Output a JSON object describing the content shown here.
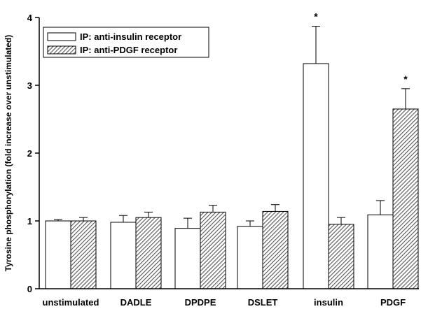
{
  "chart_data": {
    "type": "bar",
    "categories": [
      "unstimulated",
      "DADLE",
      "DPDPE",
      "DSLET",
      "insulin",
      "PDGF"
    ],
    "ylabel": "Tyrosine phosphorylation (fold increase over unstimulated)",
    "xlabel": "",
    "ylim": [
      0,
      4
    ],
    "yticks": [
      "0",
      "1",
      "2",
      "3",
      "4"
    ],
    "grid": false,
    "legend_position": "top-left",
    "series": [
      {
        "name": "IP: anti-insulin receptor",
        "fill": "white",
        "values": [
          1.0,
          0.98,
          0.89,
          0.92,
          3.32,
          1.09
        ],
        "errors": [
          0.02,
          0.1,
          0.15,
          0.08,
          0.55,
          0.21
        ],
        "significance": [
          "",
          "",
          "",
          "",
          "*",
          ""
        ]
      },
      {
        "name": "IP: anti-PDGF receptor",
        "fill": "hatched",
        "values": [
          1.0,
          1.05,
          1.13,
          1.14,
          0.95,
          2.65
        ],
        "errors": [
          0.05,
          0.08,
          0.1,
          0.1,
          0.1,
          0.3
        ],
        "significance": [
          "",
          "",
          "",
          "",
          "",
          "*"
        ]
      }
    ]
  }
}
